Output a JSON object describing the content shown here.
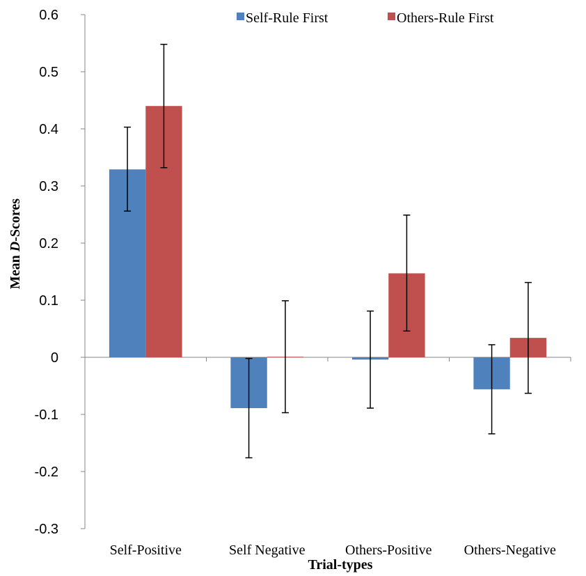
{
  "chart_data": {
    "type": "bar",
    "categories": [
      "Self-Positive",
      "Self Negative",
      "Others-Positive",
      "Others-Negative"
    ],
    "series": [
      {
        "name": "Self-Rule First",
        "values": [
          0.329,
          -0.089,
          -0.004,
          -0.056
        ],
        "err_low": [
          0.256,
          -0.176,
          -0.089,
          -0.134
        ],
        "err_high": [
          0.403,
          -0.002,
          0.081,
          0.022
        ],
        "color": "#4f81bd"
      },
      {
        "name": "Others-Rule First",
        "values": [
          0.44,
          0.001,
          0.147,
          0.034
        ],
        "err_low": [
          0.332,
          -0.097,
          0.046,
          -0.063
        ],
        "err_high": [
          0.548,
          0.099,
          0.249,
          0.131
        ],
        "color": "#c0504d"
      }
    ],
    "yticks": [
      "0.6",
      "0.5",
      "0.4",
      "0.3",
      "0.2",
      "0.1",
      "0",
      "-0.1",
      "-0.2",
      "-0.3"
    ],
    "ylim": [
      -0.3,
      0.6
    ],
    "xlabel": "Trial-types",
    "ylabel_prefix": "Mean ",
    "ylabel_italic": "D",
    "ylabel_suffix": "-Scores",
    "legend_position": "top",
    "grid": false
  }
}
